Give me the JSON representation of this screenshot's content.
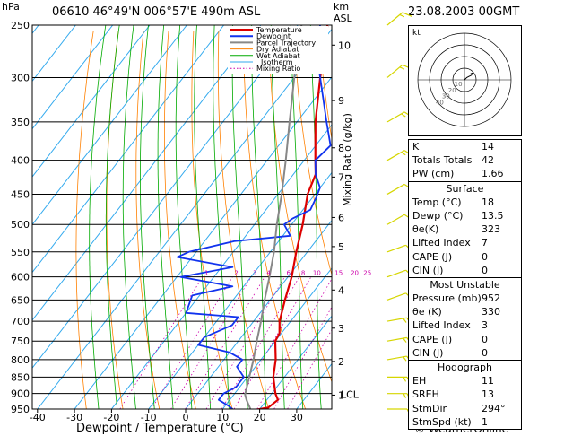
{
  "header": {
    "station": "06610  46°49'N  006°57'E  490m  ASL",
    "datetime": "23.08.2003  00GMT",
    "pressure_unit": "hPa",
    "km_label": "km",
    "asl_label": "ASL",
    "x_axis_label": "Dewpoint / Temperature (°C)",
    "mixing_label": "Mixing Ratio (g/kg)",
    "copyright": "© WeatherOnline"
  },
  "legend": [
    "Temperature",
    "Dewpoint",
    "Parcel Trajectory",
    "Dry Adiabat",
    "Wet Adiabat",
    "Isotherm",
    "Mixing Ratio"
  ],
  "colors": {
    "temperature": "#dd0000",
    "dewpoint": "#1133ee",
    "parcel": "#888888",
    "dry_adiabat": "#ff8000",
    "wet_adiabat": "#00aa00",
    "isotherm": "#33aaee",
    "mixing_ratio": "#cc00aa",
    "wind_barb": "#d6d600"
  },
  "chart_data": {
    "type": "line",
    "subtype": "skew-T log-P sounding",
    "title": "",
    "xlabel": "Dewpoint / Temperature (°C)",
    "ylabel": "hPa",
    "xlim": [
      -40,
      40
    ],
    "pressure_range": [
      950,
      250
    ],
    "pressure_ticks": [
      250,
      300,
      350,
      400,
      450,
      500,
      550,
      600,
      650,
      700,
      750,
      800,
      850,
      900,
      950
    ],
    "temperature_ticks": [
      -40,
      -30,
      -20,
      -10,
      0,
      10,
      20,
      30
    ],
    "height_ticks_km": [
      {
        "label": "10",
        "p": 268
      },
      {
        "label": "9",
        "p": 325
      },
      {
        "label": "8",
        "p": 383
      },
      {
        "label": "7",
        "p": 424
      },
      {
        "label": "6",
        "p": 488
      },
      {
        "label": "5",
        "p": 540
      },
      {
        "label": "4",
        "p": 628
      },
      {
        "label": "3",
        "p": 717
      },
      {
        "label": "2",
        "p": 805
      },
      {
        "label": "1",
        "p": 905
      }
    ],
    "lcl": {
      "label": "LCL",
      "p": 903
    },
    "mixing_ratio_labels": [
      "1",
      "2",
      "3",
      "4",
      "6",
      "8",
      "10",
      "15",
      "20",
      "25"
    ],
    "mixing_ratio_values": [
      1,
      2,
      3,
      4,
      6,
      8,
      10,
      15,
      20,
      25
    ],
    "series": [
      {
        "name": "Temperature",
        "points": [
          [
            955,
            18
          ],
          [
            945,
            22
          ],
          [
            920,
            23
          ],
          [
            900,
            21
          ],
          [
            850,
            17
          ],
          [
            800,
            14
          ],
          [
            750,
            10
          ],
          [
            730,
            9.5
          ],
          [
            700,
            7
          ],
          [
            650,
            4
          ],
          [
            600,
            1
          ],
          [
            550,
            -3
          ],
          [
            500,
            -7
          ],
          [
            450,
            -12
          ],
          [
            420,
            -14
          ],
          [
            400,
            -17
          ],
          [
            350,
            -25
          ],
          [
            300,
            -33
          ],
          [
            270,
            -38
          ],
          [
            250,
            -42
          ]
        ]
      },
      {
        "name": "Dewpoint",
        "points": [
          [
            955,
            13.5
          ],
          [
            940,
            11
          ],
          [
            920,
            7
          ],
          [
            900,
            7
          ],
          [
            880,
            9
          ],
          [
            850,
            9
          ],
          [
            820,
            5
          ],
          [
            800,
            5
          ],
          [
            780,
            0
          ],
          [
            760,
            -10
          ],
          [
            740,
            -10
          ],
          [
            710,
            -5
          ],
          [
            690,
            -5
          ],
          [
            680,
            -20
          ],
          [
            640,
            -22
          ],
          [
            620,
            -13
          ],
          [
            600,
            -29
          ],
          [
            580,
            -17
          ],
          [
            560,
            -34
          ],
          [
            550,
            -32
          ],
          [
            530,
            -22
          ],
          [
            520,
            -8
          ],
          [
            500,
            -12
          ],
          [
            490,
            -11
          ],
          [
            475,
            -8
          ],
          [
            455,
            -9
          ],
          [
            440,
            -10
          ],
          [
            420,
            -14
          ],
          [
            400,
            -17
          ],
          [
            380,
            -16
          ],
          [
            350,
            -22
          ],
          [
            300,
            -33
          ],
          [
            280,
            -38
          ],
          [
            265,
            -41
          ],
          [
            250,
            -44
          ]
        ]
      },
      {
        "name": "Parcel Trajectory",
        "points": [
          [
            955,
            18
          ],
          [
            920,
            14.5
          ],
          [
            903,
            13
          ],
          [
            850,
            10.5
          ],
          [
            800,
            8
          ],
          [
            750,
            5
          ],
          [
            700,
            2
          ],
          [
            650,
            -1.5
          ],
          [
            600,
            -5
          ],
          [
            550,
            -9
          ],
          [
            500,
            -14
          ],
          [
            450,
            -19
          ],
          [
            400,
            -25
          ],
          [
            350,
            -32
          ],
          [
            300,
            -40
          ],
          [
            250,
            -49
          ]
        ]
      }
    ],
    "winds": [
      {
        "p": 950,
        "dir": 270,
        "kt": 10
      },
      {
        "p": 900,
        "dir": 270,
        "kt": 15
      },
      {
        "p": 850,
        "dir": 270,
        "kt": 15
      },
      {
        "p": 800,
        "dir": 260,
        "kt": 15
      },
      {
        "p": 750,
        "dir": 260,
        "kt": 15
      },
      {
        "p": 700,
        "dir": 260,
        "kt": 15
      },
      {
        "p": 650,
        "dir": 250,
        "kt": 10
      },
      {
        "p": 600,
        "dir": 250,
        "kt": 10
      },
      {
        "p": 550,
        "dir": 250,
        "kt": 10
      },
      {
        "p": 500,
        "dir": 240,
        "kt": 10
      },
      {
        "p": 450,
        "dir": 240,
        "kt": 10
      },
      {
        "p": 400,
        "dir": 240,
        "kt": 15
      },
      {
        "p": 350,
        "dir": 240,
        "kt": 15
      },
      {
        "p": 300,
        "dir": 230,
        "kt": 15
      },
      {
        "p": 250,
        "dir": 230,
        "kt": 15
      }
    ],
    "hodograph": {
      "label": "kt",
      "ring_labels": [
        "10",
        "20",
        "30",
        "40"
      ],
      "points": [
        [
          0,
          0
        ],
        [
          2,
          2
        ],
        [
          4,
          3
        ],
        [
          6,
          4
        ],
        [
          7,
          6
        ],
        [
          5,
          5
        ]
      ],
      "ring_max_kt": 40
    }
  },
  "indices": {
    "top": [
      {
        "label": "K",
        "value": "14"
      },
      {
        "label": "Totals Totals",
        "value": "42"
      },
      {
        "label": "PW (cm)",
        "value": "1.66"
      }
    ],
    "surface_title": "Surface",
    "surface": [
      {
        "label": "Temp (°C)",
        "value": "18"
      },
      {
        "label": "Dewp (°C)",
        "value": "13.5"
      },
      {
        "label": "θe(K)",
        "value": "323"
      },
      {
        "label": "Lifted Index",
        "value": "7"
      },
      {
        "label": "CAPE (J)",
        "value": "0"
      },
      {
        "label": "CIN (J)",
        "value": "0"
      }
    ],
    "most_unstable_title": "Most Unstable",
    "most_unstable": [
      {
        "label": "Pressure (mb)",
        "value": "952"
      },
      {
        "label": "θe (K)",
        "value": "330"
      },
      {
        "label": "Lifted Index",
        "value": "3"
      },
      {
        "label": "CAPE (J)",
        "value": "0"
      },
      {
        "label": "CIN (J)",
        "value": "0"
      }
    ],
    "hodograph_title": "Hodograph",
    "hodograph": [
      {
        "label": "EH",
        "value": "11"
      },
      {
        "label": "SREH",
        "value": "13"
      },
      {
        "label": "StmDir",
        "value": "294°"
      },
      {
        "label": "StmSpd (kt)",
        "value": "1"
      }
    ]
  }
}
